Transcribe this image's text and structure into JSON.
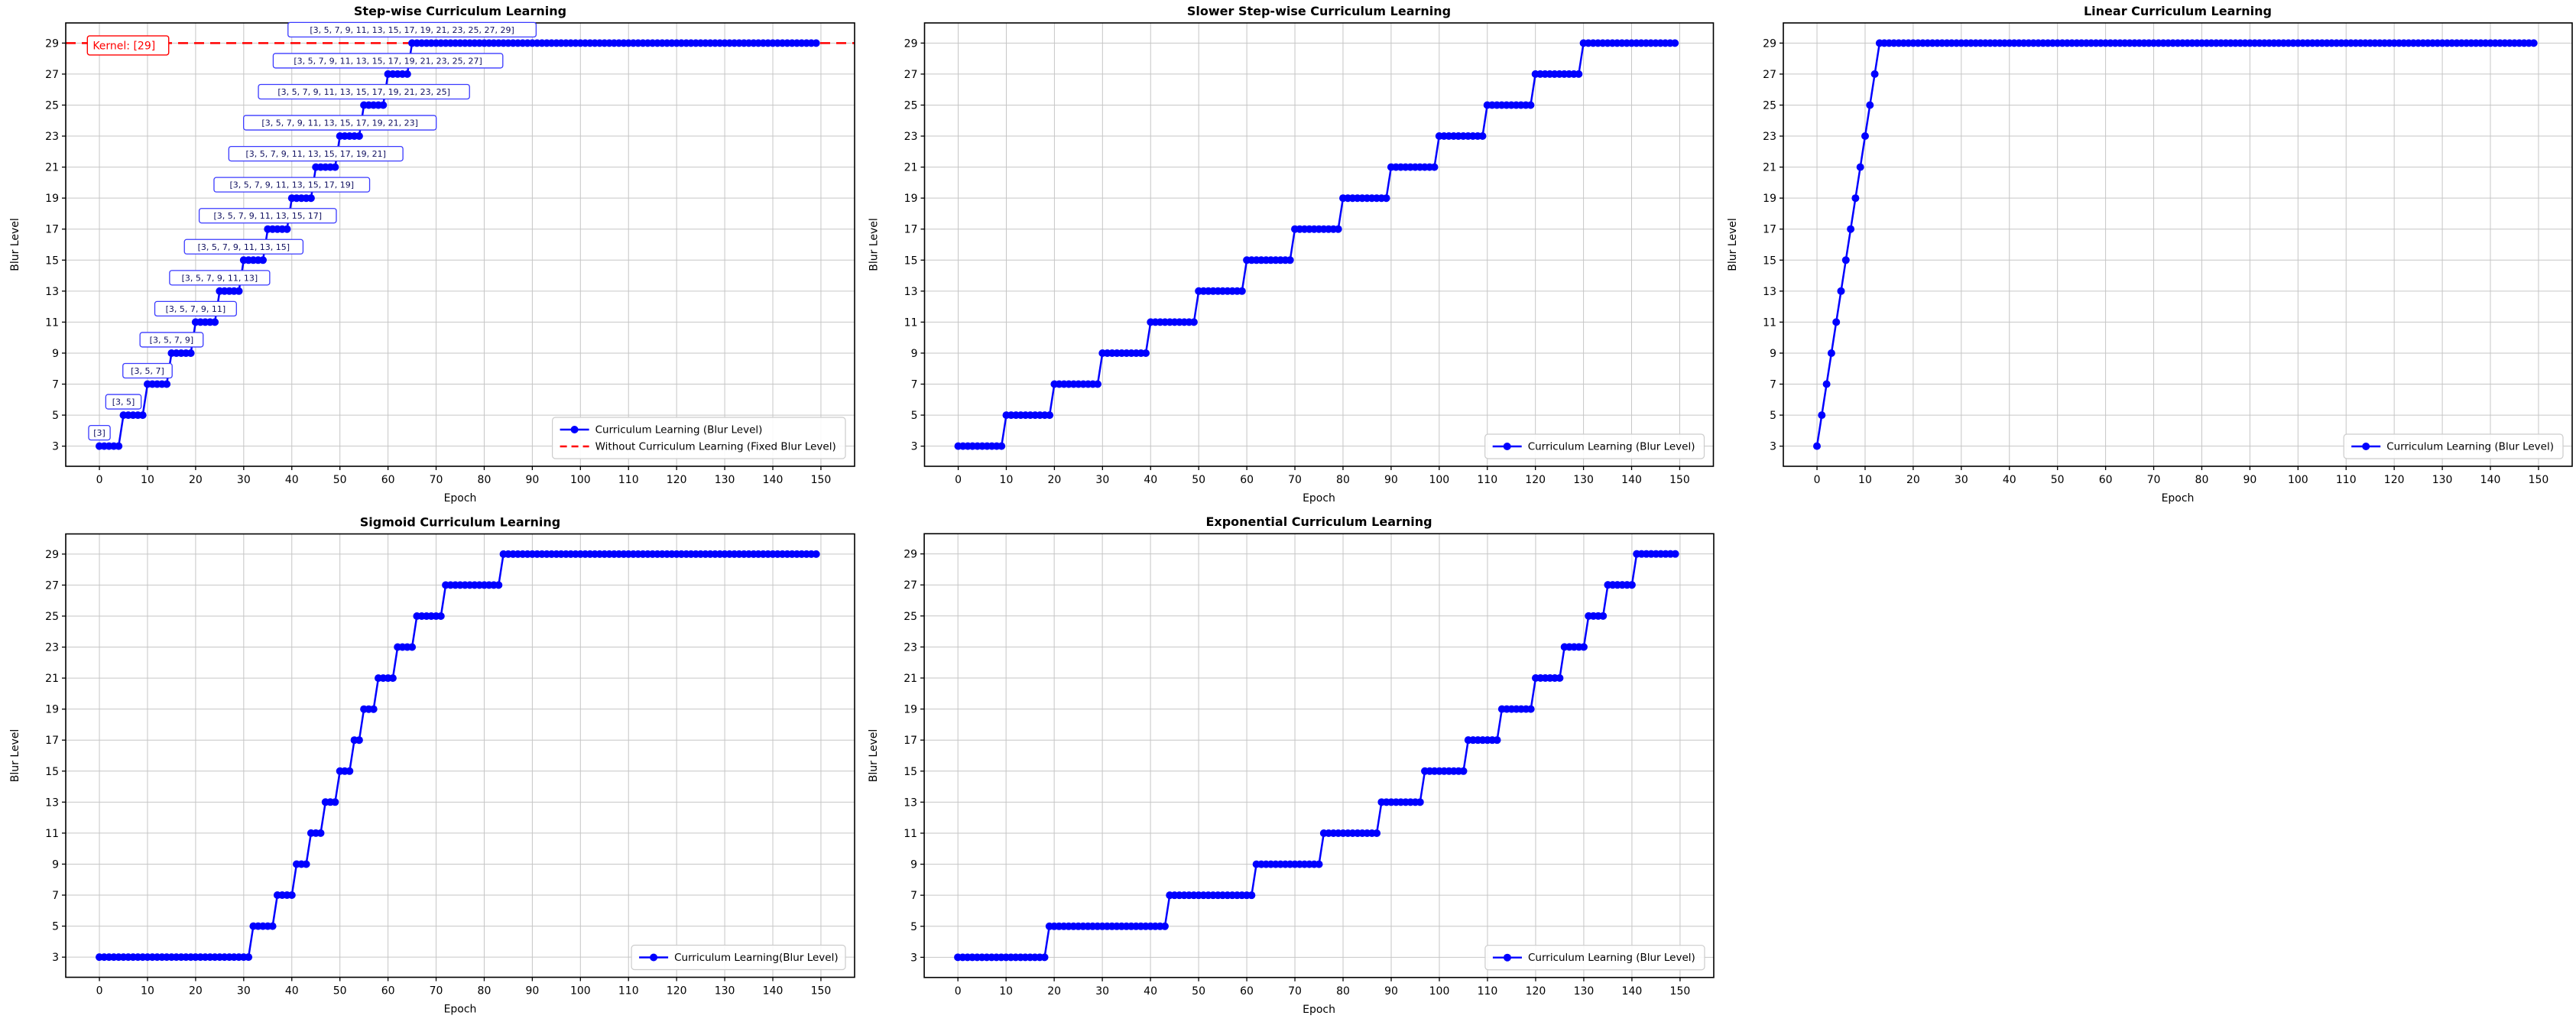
{
  "figure": {
    "background": "#ffffff",
    "colors": {
      "line": "#0000ff",
      "reference": "#ff0000",
      "grid": "#c6c6c6",
      "spine": "#000000",
      "tick_label": "#000000",
      "annotation_border": "#3a3aff",
      "annotation_text": "#101060",
      "legend_border": "#cccccc"
    }
  },
  "chart_data": [
    {
      "type": "line",
      "title": "Step-wise Curriculum Learning",
      "xlabel": "Epoch",
      "ylabel": "Blur Level",
      "x_ticks": [
        0,
        10,
        20,
        30,
        40,
        50,
        60,
        70,
        80,
        90,
        100,
        110,
        120,
        130,
        140,
        150
      ],
      "y_ticks": [
        3,
        5,
        7,
        9,
        11,
        13,
        15,
        17,
        19,
        21,
        23,
        25,
        27,
        29
      ],
      "xlim": [
        -7,
        157
      ],
      "ylim": [
        1.7,
        30.3
      ],
      "grid": true,
      "epochs": 150,
      "series": [
        {
          "name": "Curriculum Learning (Blur Level)",
          "color": "#0000ff",
          "marker": "circle",
          "steps": [
            [
              3,
              0,
              4
            ],
            [
              5,
              5,
              9
            ],
            [
              7,
              10,
              14
            ],
            [
              9,
              15,
              19
            ],
            [
              11,
              20,
              24
            ],
            [
              13,
              25,
              29
            ],
            [
              15,
              30,
              34
            ],
            [
              17,
              35,
              39
            ],
            [
              19,
              40,
              44
            ],
            [
              21,
              45,
              49
            ],
            [
              23,
              50,
              54
            ],
            [
              25,
              55,
              59
            ],
            [
              27,
              60,
              64
            ],
            [
              29,
              65,
              149
            ]
          ]
        }
      ],
      "reference_line": {
        "y": 29,
        "color": "#ff0000",
        "style": "dashed",
        "name": "Without Curriculum Learning (Fixed Blur Level)"
      },
      "annotations": [
        {
          "text": "[3]",
          "epoch": 0,
          "level": 3,
          "kind": "kernel-list"
        },
        {
          "text": "[3, 5]",
          "epoch": 5,
          "level": 5,
          "kind": "kernel-list"
        },
        {
          "text": "[3, 5, 7]",
          "epoch": 10,
          "level": 7,
          "kind": "kernel-list"
        },
        {
          "text": "[3, 5, 7, 9]",
          "epoch": 15,
          "level": 9,
          "kind": "kernel-list"
        },
        {
          "text": "[3, 5, 7, 9, 11]",
          "epoch": 20,
          "level": 11,
          "kind": "kernel-list"
        },
        {
          "text": "[3, 5, 7, 9, 11, 13]",
          "epoch": 25,
          "level": 13,
          "kind": "kernel-list"
        },
        {
          "text": "[3, 5, 7, 9, 11, 13, 15]",
          "epoch": 30,
          "level": 15,
          "kind": "kernel-list"
        },
        {
          "text": "[3, 5, 7, 9, 11, 13, 15, 17]",
          "epoch": 35,
          "level": 17,
          "kind": "kernel-list"
        },
        {
          "text": "[3, 5, 7, 9, 11, 13, 15, 17, 19]",
          "epoch": 40,
          "level": 19,
          "kind": "kernel-list"
        },
        {
          "text": "[3, 5, 7, 9, 11, 13, 15, 17, 19, 21]",
          "epoch": 45,
          "level": 21,
          "kind": "kernel-list"
        },
        {
          "text": "[3, 5, 7, 9, 11, 13, 15, 17, 19, 21, 23]",
          "epoch": 50,
          "level": 23,
          "kind": "kernel-list"
        },
        {
          "text": "[3, 5, 7, 9, 11, 13, 15, 17, 19, 21, 23, 25]",
          "epoch": 55,
          "level": 25,
          "kind": "kernel-list"
        },
        {
          "text": "[3, 5, 7, 9, 11, 13, 15, 17, 19, 21, 23, 25, 27]",
          "epoch": 60,
          "level": 27,
          "kind": "kernel-list"
        },
        {
          "text": "[3, 5, 7, 9, 11, 13, 15, 17, 19, 21, 23, 25, 27, 29]",
          "epoch": 65,
          "level": 29,
          "kind": "kernel-list"
        },
        {
          "text": "Kernel: [29]",
          "epoch": -2.5,
          "level": 28.85,
          "kind": "fixed-kernel",
          "color": "#ff0000"
        }
      ],
      "legend": {
        "position": "lower right",
        "entries": [
          {
            "label": "Curriculum Learning (Blur Level)",
            "color": "#0000ff",
            "style": "marker-line"
          },
          {
            "label": "Without Curriculum Learning (Fixed Blur Level)",
            "color": "#ff0000",
            "style": "dashed"
          }
        ]
      }
    },
    {
      "type": "line",
      "title": "Slower Step-wise Curriculum Learning",
      "xlabel": "Epoch",
      "ylabel": "Blur Level",
      "x_ticks": [
        0,
        10,
        20,
        30,
        40,
        50,
        60,
        70,
        80,
        90,
        100,
        110,
        120,
        130,
        140,
        150
      ],
      "y_ticks": [
        3,
        5,
        7,
        9,
        11,
        13,
        15,
        17,
        19,
        21,
        23,
        25,
        27,
        29
      ],
      "xlim": [
        -7,
        157
      ],
      "ylim": [
        1.7,
        30.3
      ],
      "grid": true,
      "epochs": 150,
      "series": [
        {
          "name": "Curriculum Learning (Blur Level)",
          "color": "#0000ff",
          "marker": "circle",
          "steps": [
            [
              3,
              0,
              9
            ],
            [
              5,
              10,
              19
            ],
            [
              7,
              20,
              29
            ],
            [
              9,
              30,
              39
            ],
            [
              11,
              40,
              49
            ],
            [
              13,
              50,
              59
            ],
            [
              15,
              60,
              69
            ],
            [
              17,
              70,
              79
            ],
            [
              19,
              80,
              89
            ],
            [
              21,
              90,
              99
            ],
            [
              23,
              100,
              109
            ],
            [
              25,
              110,
              119
            ],
            [
              27,
              120,
              129
            ],
            [
              29,
              130,
              149
            ]
          ]
        }
      ],
      "reference_line": null,
      "annotations": [],
      "legend": {
        "position": "lower right",
        "entries": [
          {
            "label": "Curriculum Learning (Blur Level)",
            "color": "#0000ff",
            "style": "marker-line"
          }
        ]
      }
    },
    {
      "type": "line",
      "title": "Linear Curriculum Learning",
      "xlabel": "Epoch",
      "ylabel": "Blur Level",
      "x_ticks": [
        0,
        10,
        20,
        30,
        40,
        50,
        60,
        70,
        80,
        90,
        100,
        110,
        120,
        130,
        140,
        150
      ],
      "y_ticks": [
        3,
        5,
        7,
        9,
        11,
        13,
        15,
        17,
        19,
        21,
        23,
        25,
        27,
        29
      ],
      "xlim": [
        -7,
        157
      ],
      "ylim": [
        1.7,
        30.3
      ],
      "grid": true,
      "epochs": 150,
      "series": [
        {
          "name": "Curriculum Learning (Blur Level)",
          "color": "#0000ff",
          "marker": "circle",
          "steps": [
            [
              3,
              0,
              0
            ],
            [
              5,
              1,
              1
            ],
            [
              7,
              2,
              2
            ],
            [
              9,
              3,
              3
            ],
            [
              11,
              4,
              4
            ],
            [
              13,
              5,
              5
            ],
            [
              15,
              6,
              6
            ],
            [
              17,
              7,
              7
            ],
            [
              19,
              8,
              8
            ],
            [
              21,
              9,
              9
            ],
            [
              23,
              10,
              10
            ],
            [
              25,
              11,
              11
            ],
            [
              27,
              12,
              12
            ],
            [
              29,
              13,
              149
            ]
          ]
        }
      ],
      "reference_line": null,
      "annotations": [],
      "legend": {
        "position": "lower right",
        "entries": [
          {
            "label": "Curriculum Learning (Blur Level)",
            "color": "#0000ff",
            "style": "marker-line"
          }
        ]
      }
    },
    {
      "type": "line",
      "title": "Sigmoid Curriculum Learning",
      "xlabel": "Epoch",
      "ylabel": "Blur Level",
      "x_ticks": [
        0,
        10,
        20,
        30,
        40,
        50,
        60,
        70,
        80,
        90,
        100,
        110,
        120,
        130,
        140,
        150
      ],
      "y_ticks": [
        3,
        5,
        7,
        9,
        11,
        13,
        15,
        17,
        19,
        21,
        23,
        25,
        27,
        29
      ],
      "xlim": [
        -7,
        157
      ],
      "ylim": [
        1.7,
        30.3
      ],
      "grid": true,
      "epochs": 150,
      "series": [
        {
          "name": "Curriculum Learning(Blur Level)",
          "color": "#0000ff",
          "marker": "circle",
          "steps": [
            [
              3,
              0,
              31
            ],
            [
              5,
              32,
              36
            ],
            [
              7,
              37,
              40
            ],
            [
              9,
              41,
              43
            ],
            [
              11,
              44,
              46
            ],
            [
              13,
              47,
              49
            ],
            [
              15,
              50,
              52
            ],
            [
              17,
              53,
              54
            ],
            [
              19,
              55,
              57
            ],
            [
              21,
              58,
              61
            ],
            [
              23,
              62,
              65
            ],
            [
              25,
              66,
              71
            ],
            [
              27,
              72,
              83
            ],
            [
              29,
              84,
              149
            ]
          ]
        }
      ],
      "reference_line": null,
      "annotations": [],
      "legend": {
        "position": "lower right",
        "entries": [
          {
            "label": "Curriculum Learning(Blur Level)",
            "color": "#0000ff",
            "style": "marker-line"
          }
        ]
      }
    },
    {
      "type": "line",
      "title": "Exponential Curriculum Learning",
      "xlabel": "Epoch",
      "ylabel": "Blur Level",
      "x_ticks": [
        0,
        10,
        20,
        30,
        40,
        50,
        60,
        70,
        80,
        90,
        100,
        110,
        120,
        130,
        140,
        150
      ],
      "y_ticks": [
        3,
        5,
        7,
        9,
        11,
        13,
        15,
        17,
        19,
        21,
        23,
        25,
        27,
        29
      ],
      "xlim": [
        -7,
        157
      ],
      "ylim": [
        1.7,
        30.3
      ],
      "grid": true,
      "epochs": 150,
      "series": [
        {
          "name": "Curriculum Learning (Blur Level)",
          "color": "#0000ff",
          "marker": "circle",
          "steps": [
            [
              3,
              0,
              18
            ],
            [
              5,
              19,
              43
            ],
            [
              7,
              44,
              61
            ],
            [
              9,
              62,
              75
            ],
            [
              11,
              76,
              87
            ],
            [
              13,
              88,
              96
            ],
            [
              15,
              97,
              105
            ],
            [
              17,
              106,
              112
            ],
            [
              19,
              113,
              119
            ],
            [
              21,
              120,
              125
            ],
            [
              23,
              126,
              130
            ],
            [
              25,
              131,
              134
            ],
            [
              27,
              135,
              140
            ],
            [
              29,
              141,
              149
            ]
          ]
        }
      ],
      "reference_line": null,
      "annotations": [],
      "legend": {
        "position": "lower right",
        "entries": [
          {
            "label": "Curriculum Learning (Blur Level)",
            "color": "#0000ff",
            "style": "marker-line"
          }
        ]
      }
    }
  ]
}
